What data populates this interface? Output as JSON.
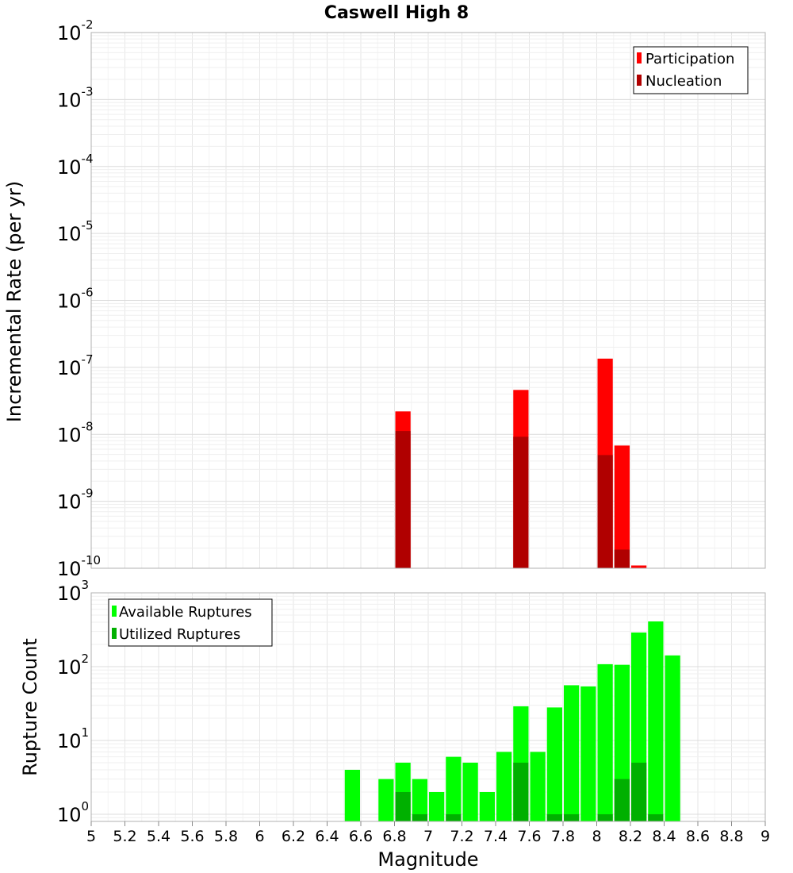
{
  "chart_data": [
    {
      "type": "bar",
      "title": "Caswell High 8",
      "xlabel": "",
      "ylabel": "Incremental Rate (per yr)",
      "xlim": [
        5,
        9
      ],
      "ylim": [
        1e-10,
        0.01
      ],
      "yscale": "log",
      "y_tick_exponents": [
        -10,
        -9,
        -8,
        -7,
        -6,
        -5,
        -4,
        -3,
        -2
      ],
      "grid": true,
      "legend_position": "top-right",
      "bin_width": 0.1,
      "series": [
        {
          "name": "Participation",
          "color": "#ff0000",
          "points": [
            {
              "x": 6.85,
              "y": 2.2e-08
            },
            {
              "x": 7.55,
              "y": 4.6e-08
            },
            {
              "x": 8.05,
              "y": 1.35e-07
            },
            {
              "x": 8.15,
              "y": 6.8e-09
            },
            {
              "x": 8.25,
              "y": 1.1e-10
            }
          ]
        },
        {
          "name": "Nucleation",
          "color": "#b00000",
          "points": [
            {
              "x": 6.85,
              "y": 1.12e-08
            },
            {
              "x": 7.55,
              "y": 9.2e-09
            },
            {
              "x": 8.05,
              "y": 4.9e-09
            },
            {
              "x": 8.15,
              "y": 1.9e-10
            }
          ]
        }
      ]
    },
    {
      "type": "bar",
      "title": "",
      "xlabel": "Magnitude",
      "ylabel": "Rupture Count",
      "xlim": [
        5,
        9
      ],
      "ylim": [
        0.8,
        1000
      ],
      "yscale": "log",
      "y_tick_exponents": [
        0,
        1,
        2,
        3
      ],
      "x_ticks": [
        "5",
        "5.2",
        "5.4",
        "5.6",
        "5.8",
        "6",
        "6.2",
        "6.4",
        "6.6",
        "6.8",
        "7",
        "7.2",
        "7.4",
        "7.6",
        "7.8",
        "8",
        "8.2",
        "8.4",
        "8.6",
        "8.8",
        "9"
      ],
      "grid": true,
      "legend_position": "top-left",
      "bin_width": 0.1,
      "series": [
        {
          "name": "Available Ruptures",
          "color": "#00ff00",
          "points": [
            {
              "x": 6.55,
              "y": 4
            },
            {
              "x": 6.75,
              "y": 3
            },
            {
              "x": 6.85,
              "y": 5
            },
            {
              "x": 6.95,
              "y": 3
            },
            {
              "x": 7.05,
              "y": 2
            },
            {
              "x": 7.15,
              "y": 6
            },
            {
              "x": 7.25,
              "y": 5
            },
            {
              "x": 7.35,
              "y": 2
            },
            {
              "x": 7.45,
              "y": 7
            },
            {
              "x": 7.55,
              "y": 29
            },
            {
              "x": 7.65,
              "y": 7
            },
            {
              "x": 7.75,
              "y": 28
            },
            {
              "x": 7.85,
              "y": 56
            },
            {
              "x": 7.95,
              "y": 54
            },
            {
              "x": 8.05,
              "y": 108
            },
            {
              "x": 8.15,
              "y": 106
            },
            {
              "x": 8.25,
              "y": 290
            },
            {
              "x": 8.35,
              "y": 410
            },
            {
              "x": 8.45,
              "y": 142
            }
          ]
        },
        {
          "name": "Utilized Ruptures",
          "color": "#00b000",
          "points": [
            {
              "x": 6.85,
              "y": 2
            },
            {
              "x": 6.95,
              "y": 1
            },
            {
              "x": 7.15,
              "y": 1
            },
            {
              "x": 7.55,
              "y": 5
            },
            {
              "x": 7.75,
              "y": 1
            },
            {
              "x": 7.85,
              "y": 1
            },
            {
              "x": 8.05,
              "y": 1
            },
            {
              "x": 8.15,
              "y": 3
            },
            {
              "x": 8.25,
              "y": 5
            },
            {
              "x": 8.35,
              "y": 1
            }
          ]
        }
      ]
    }
  ]
}
